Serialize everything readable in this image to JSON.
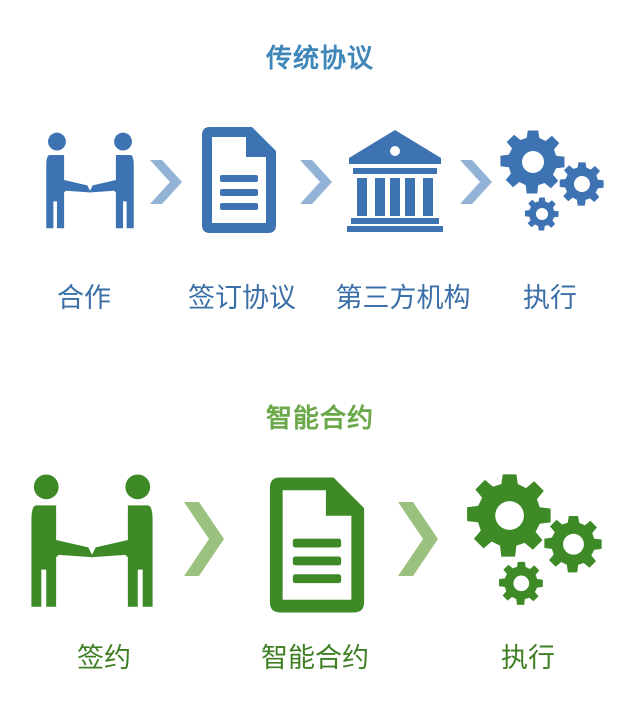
{
  "traditional": {
    "title": "传统协议",
    "steps": [
      {
        "label": "合作",
        "icon": "handshake-icon"
      },
      {
        "label": "签订协议",
        "icon": "document-icon"
      },
      {
        "label": "第三方机构",
        "icon": "institution-icon"
      },
      {
        "label": "执行",
        "icon": "gears-icon"
      }
    ]
  },
  "smart": {
    "title": "智能合约",
    "steps": [
      {
        "label": "签约",
        "icon": "handshake-icon"
      },
      {
        "label": "智能合约",
        "icon": "document-icon"
      },
      {
        "label": "执行",
        "icon": "gears-icon"
      }
    ]
  },
  "colors": {
    "traditional_icon": "#3e73b3",
    "traditional_arrow": "#92b2d6",
    "traditional_title": "#3f86b9",
    "smart_icon": "#3d8a27",
    "smart_arrow": "#9bc17f",
    "smart_title": "#6aa84a"
  }
}
